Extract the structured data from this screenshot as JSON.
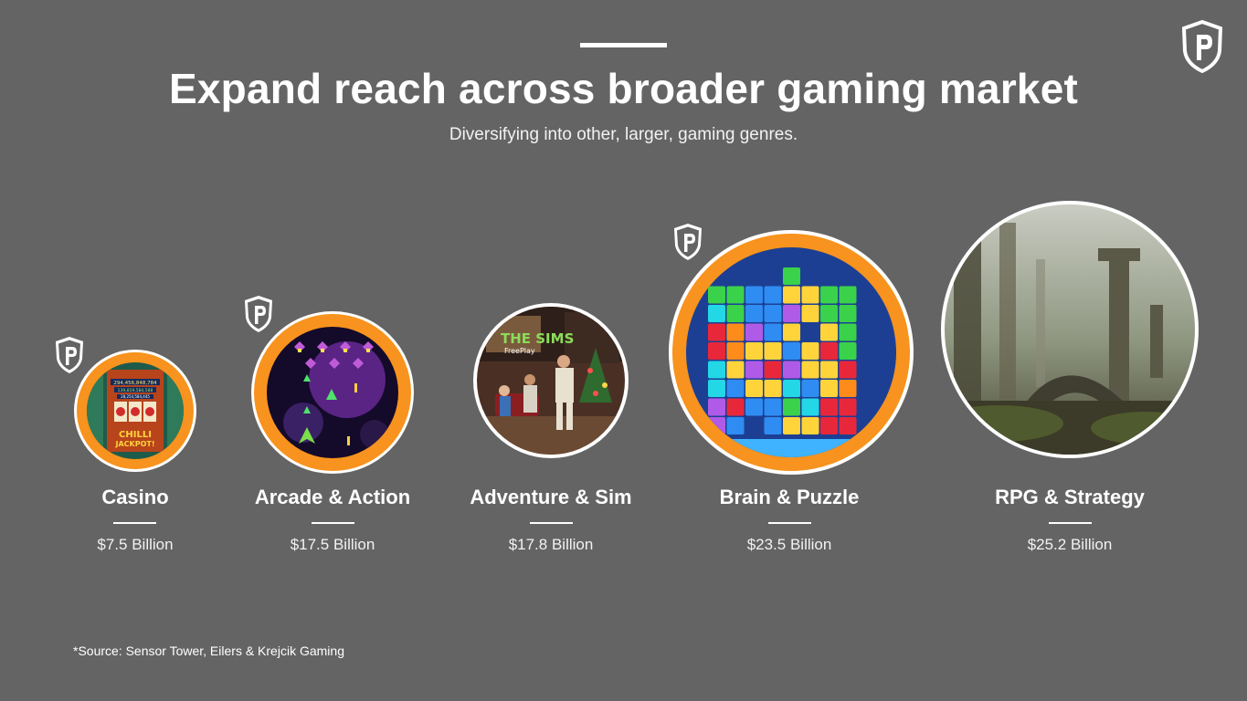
{
  "header": {
    "title": "Expand reach across broader gaming market",
    "subtitle": "Diversifying into other, larger, gaming genres."
  },
  "genres": [
    {
      "name": "Casino",
      "market": "$7.5 Billion",
      "image_texts": [
        "294,456,848,784",
        "139,819,584,588",
        "28,254,584,445",
        "CHILLI",
        "JACKPOT!"
      ]
    },
    {
      "name": "Arcade & Action",
      "market": "$17.5 Billion"
    },
    {
      "name": "Adventure & Sim",
      "market": "$17.8 Billion",
      "image_texts": [
        "THE SIMS",
        "FreePlay"
      ]
    },
    {
      "name": "Brain & Puzzle",
      "market": "$23.5 Billion"
    },
    {
      "name": "RPG & Strategy",
      "market": "$25.2 Billion"
    }
  ],
  "footer": {
    "source": "*Source:  Sensor Tower, Eilers & Krejcik Gaming"
  },
  "icons": {
    "brand_logo": "shield-p-logo-icon",
    "genre_badge": "shield-p-badge-icon"
  },
  "colors": {
    "background": "#646464",
    "accent": "#f7931e",
    "text": "#ffffff"
  }
}
